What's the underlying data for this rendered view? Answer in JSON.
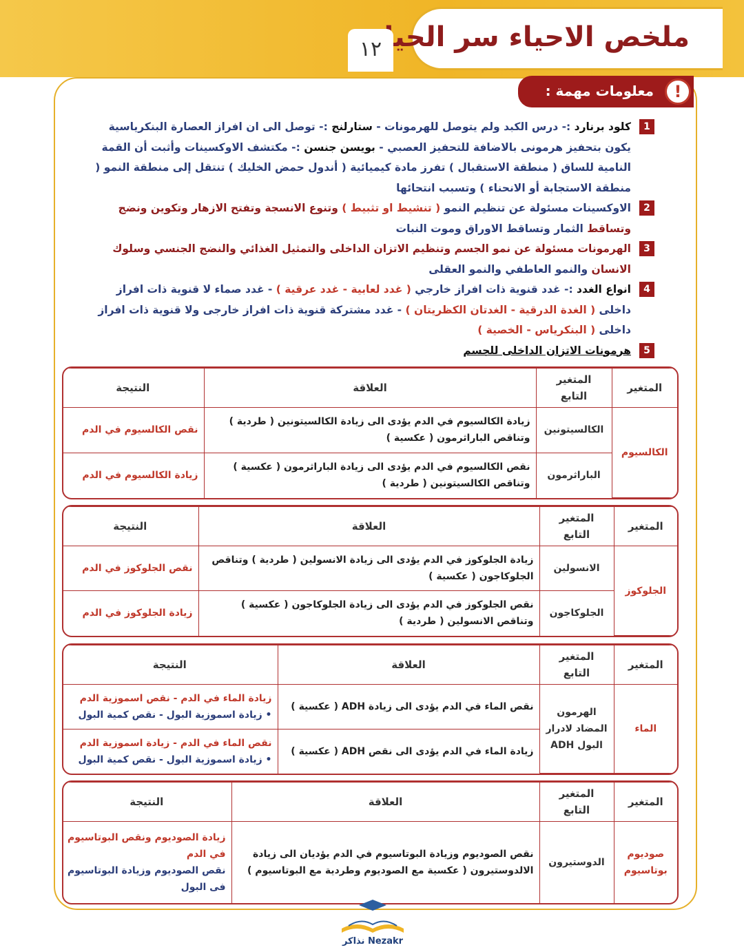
{
  "header": {
    "title": "ملخص الاحياء سر الحياة",
    "page_number": "١٢"
  },
  "label": "معلومات مهمة :",
  "icon": "!",
  "items": [
    {
      "number": "1",
      "segments": [
        {
          "text": "كلود برنارد",
          "color": "#111"
        },
        {
          "text": " :- درس الكبد ولم يتوصل للهرمونات - ",
          "color": "#2c3e7a"
        },
        {
          "text": "ستارلنج",
          "color": "#111"
        },
        {
          "text": " :- توصل الى ان افراز العصارة البنكرياسية يكون بتحفيز هرمونى بالاضافة للتحفيز العصبي - ",
          "color": "#2c3e7a"
        },
        {
          "text": "بويسن جنسن",
          "color": "#111"
        },
        {
          "text": " :- مكتشف الاوكسينات وأثبت أن القمة النامية للساق ( منطقة الاستقبال ) تفرز مادة كيميائية ( أندول حمض الخليك ) تنتقل إلى منطقة النمو ( منطقة الاستجابة أو الانحناء ) وتسبب انتحائها",
          "color": "#2c3e7a"
        }
      ]
    },
    {
      "number": "2",
      "segments": [
        {
          "text": "الاوكسينات مسئولة عن تنظيم النمو ",
          "color": "#2c3e7a"
        },
        {
          "text": "( تنشيط او تثبيط )",
          "color": "#c0392b"
        },
        {
          "text": " وتنوع الانسجة وتفتح الازهار وتكوين ونضج وتساقط ",
          "color": "#8e1c1c"
        },
        {
          "text": "الثمار وتساقط الاوراق وموت النبات",
          "color": "#2c3e7a"
        }
      ]
    },
    {
      "number": "3",
      "segments": [
        {
          "text": "الهرمونات مسئولة عن نمو الجسم وتنظيم الاتزان الداخلى والتمثيل الغذائي والنضج الجنسي وسلوك الانسان ",
          "color": "#8e1c1c"
        },
        {
          "text": "والنمو العاطفي والنمو العقلى",
          "color": "#2c3e7a"
        }
      ]
    },
    {
      "number": "4",
      "segments": [
        {
          "text": "انواع الغدد",
          "color": "#111"
        },
        {
          "text": " :- غدد قنوية ذات افراز خارجي ",
          "color": "#2c3e7a"
        },
        {
          "text": "( غدد لعابية - غدد عرقية )",
          "color": "#c0392b"
        },
        {
          "text": " - غدد صماء لا قنوية ذات افراز داخلى ",
          "color": "#2c3e7a"
        },
        {
          "text": "( الغدة الدرقية - الغدتان الكظريتان )",
          "color": "#c0392b"
        },
        {
          "text": " - غدد مشتركة قنوية ذات افراز خارجى ولا قنوية ذات افراز داخلى ",
          "color": "#2c3e7a"
        },
        {
          "text": "( البنكرياس - الخصية )",
          "color": "#c0392b"
        }
      ]
    },
    {
      "number": "5",
      "segments": [
        {
          "text": "هرمونات الاتزان الداخلى للجسم",
          "color": "#111",
          "underline": true
        }
      ]
    }
  ],
  "tables": [
    {
      "headers": [
        "المتغير",
        "المتغير التابع",
        "العلاقة",
        "النتيجة"
      ],
      "variable": "الكالسيوم",
      "rows": [
        {
          "dependent": "الكالسيتونين",
          "relation": "زيادة الكالسيوم في الدم يؤدى الى زيادة الكالسيتونين ( طردية ) وتناقص الباراثرمون ( عكسية )",
          "result": [
            "نقص الكالسيوم في الدم"
          ]
        },
        {
          "dependent": "الباراثرمون",
          "relation": "نقص الكالسيوم في الدم يؤدى الى زيادة الباراثرمون ( عكسية ) وتناقص الكالسيتونين ( طردية )",
          "result": [
            "زيادة الكالسيوم في الدم"
          ]
        }
      ]
    },
    {
      "headers": [
        "المتغير",
        "المتغير التابع",
        "العلاقة",
        "النتيجة"
      ],
      "variable": "الجلوكوز",
      "rows": [
        {
          "dependent": "الانسولين",
          "relation": "زيادة الجلوكوز في الدم يؤدى الى زيادة الانسولين ( طردية ) وتناقص الجلوكاجون ( عكسية )",
          "result": [
            "نقص الجلوكوز في الدم"
          ]
        },
        {
          "dependent": "الجلوكاجون",
          "relation": "نقص الجلوكوز في الدم يؤدى الى زيادة الجلوكاجون ( عكسية ) وتناقص الانسولين ( طردية )",
          "result": [
            "زيادة الجلوكوز في الدم"
          ]
        }
      ]
    },
    {
      "headers": [
        "المتغير",
        "المتغير التابع",
        "العلاقة",
        "النتيجة"
      ],
      "variable": "الماء",
      "dependent": "الهرمون المضاد لادرار البول ADH",
      "rows": [
        {
          "relation": "نقص الماء في الدم يؤدى الى زيادة ADH ( عكسية )",
          "result": [
            "زيادة الماء في الدم - نقص اسموزية الدم",
            "• زيادة اسموزية البول - نقص كمية البول"
          ]
        },
        {
          "relation": "زيادة الماء في الدم يؤدى الى نقص ADH ( عكسية )",
          "result": [
            "نقص الماء في الدم - زيادة اسموزية الدم",
            "• زيادة اسموزية البول - نقص كمية البول"
          ]
        }
      ]
    },
    {
      "headers": [
        "المتغير",
        "المتغير التابع",
        "العلاقة",
        "النتيجة"
      ],
      "variable": "صوديوم بوتاسيوم",
      "rows": [
        {
          "dependent": "الدوستيرون",
          "relation": "نقص الصوديوم وزيادة البوتاسيوم في الدم يؤديان الى زيادة الالدوستيرون ( عكسية مع الصوديوم وطردية مع البوتاسيوم )",
          "result": [
            "زيادة الصوديوم ونقص البوتاسيوم في الدم",
            "نقص الصوديوم وزيادة البوتاسيوم فى البول"
          ]
        }
      ]
    }
  ],
  "logo": "Nezakr نذاكر"
}
